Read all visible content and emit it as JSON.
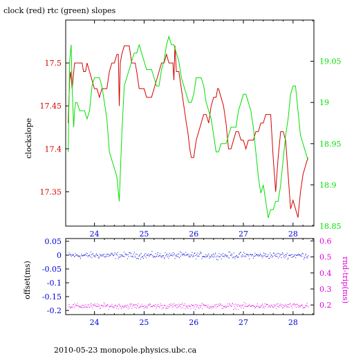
{
  "title": "clock (red) rtc (green) slopes",
  "footer": "2010-05-23  monopole.physics.ubc.ca",
  "colors": {
    "red": "#d40000",
    "green": "#00e000",
    "blue": "#0000d8",
    "magenta": "#e000e0",
    "black": "#000000"
  },
  "chart_data": [
    {
      "type": "line",
      "title": "clock (red) rtc (green) slopes",
      "ylabel": "clockslope",
      "xlim": [
        23.42,
        28.42
      ],
      "x_ticks": [
        "24",
        "25",
        "26",
        "27",
        "28"
      ],
      "ylim_left": [
        17.31,
        17.55
      ],
      "y_ticks_left": [
        "17.5",
        "17.45",
        "17.4",
        "17.35"
      ],
      "ylim_right": [
        18.85,
        19.1
      ],
      "y_ticks_right": [
        "19.05",
        "19",
        "18.95",
        "18.9",
        "18.85"
      ],
      "series": [
        {
          "axis": "left",
          "color": "#d40000",
          "x": [
            23.47,
            23.5,
            23.52,
            23.55,
            23.6,
            23.65,
            23.7,
            23.75,
            23.78,
            23.82,
            23.85,
            23.9,
            23.95,
            24.0,
            24.05,
            24.1,
            24.15,
            24.2,
            24.25,
            24.3,
            24.35,
            24.4,
            24.45,
            24.48,
            24.5,
            24.52,
            24.55,
            24.6,
            24.65,
            24.7,
            24.75,
            24.8,
            24.82,
            24.85,
            24.9,
            24.95,
            25.0,
            25.05,
            25.1,
            25.15,
            25.2,
            25.25,
            25.3,
            25.35,
            25.4,
            25.45,
            25.5,
            25.55,
            25.58,
            25.6,
            25.62,
            25.65,
            25.7,
            25.75,
            25.8,
            25.85,
            25.88,
            25.92,
            25.95,
            26.0,
            26.05,
            26.1,
            26.15,
            26.2,
            26.25,
            26.3,
            26.35,
            26.4,
            26.45,
            26.48,
            26.5,
            26.55,
            26.6,
            26.65,
            26.7,
            26.75,
            26.8,
            26.85,
            26.9,
            26.95,
            27.0,
            27.05,
            27.1,
            27.15,
            27.2,
            27.25,
            27.3,
            27.35,
            27.4,
            27.45,
            27.5,
            27.55,
            27.6,
            27.65,
            27.7,
            27.75,
            27.8,
            27.85,
            27.9,
            27.95,
            28.0,
            28.05,
            28.1,
            28.15,
            28.2,
            28.25,
            28.3
          ],
          "y": [
            17.43,
            17.48,
            17.49,
            17.47,
            17.5,
            17.5,
            17.5,
            17.5,
            17.49,
            17.49,
            17.5,
            17.49,
            17.48,
            17.47,
            17.47,
            17.46,
            17.47,
            17.47,
            17.47,
            17.49,
            17.5,
            17.5,
            17.51,
            17.51,
            17.45,
            17.5,
            17.51,
            17.52,
            17.52,
            17.52,
            17.5,
            17.5,
            17.5,
            17.49,
            17.47,
            17.47,
            17.47,
            17.46,
            17.46,
            17.46,
            17.47,
            17.48,
            17.49,
            17.5,
            17.5,
            17.51,
            17.5,
            17.5,
            17.5,
            17.48,
            17.52,
            17.49,
            17.49,
            17.47,
            17.45,
            17.43,
            17.42,
            17.4,
            17.39,
            17.39,
            17.41,
            17.42,
            17.43,
            17.44,
            17.44,
            17.43,
            17.45,
            17.46,
            17.46,
            17.47,
            17.47,
            17.46,
            17.45,
            17.43,
            17.4,
            17.4,
            17.41,
            17.42,
            17.42,
            17.41,
            17.41,
            17.4,
            17.41,
            17.41,
            17.41,
            17.42,
            17.42,
            17.43,
            17.43,
            17.44,
            17.44,
            17.44,
            17.39,
            17.35,
            17.39,
            17.42,
            17.42,
            17.41,
            17.37,
            17.33,
            17.34,
            17.33,
            17.32,
            17.35,
            17.37,
            17.38,
            17.39
          ]
        },
        {
          "axis": "right",
          "color": "#00e000",
          "x": [
            23.47,
            23.5,
            23.53,
            23.55,
            23.58,
            23.6,
            23.62,
            23.65,
            23.7,
            23.75,
            23.8,
            23.85,
            23.9,
            23.95,
            24.0,
            24.05,
            24.1,
            24.15,
            24.2,
            24.25,
            24.3,
            24.35,
            24.4,
            24.45,
            24.5,
            24.55,
            24.6,
            24.65,
            24.7,
            24.75,
            24.8,
            24.85,
            24.9,
            24.95,
            25.0,
            25.05,
            25.1,
            25.15,
            25.2,
            25.25,
            25.3,
            25.35,
            25.4,
            25.45,
            25.5,
            25.55,
            25.6,
            25.65,
            25.7,
            25.75,
            25.8,
            25.85,
            25.9,
            25.95,
            26.0,
            26.05,
            26.1,
            26.15,
            26.2,
            26.25,
            26.3,
            26.35,
            26.4,
            26.45,
            26.5,
            26.55,
            26.6,
            26.65,
            26.7,
            26.75,
            26.8,
            26.85,
            26.9,
            26.95,
            27.0,
            27.05,
            27.1,
            27.15,
            27.2,
            27.25,
            27.3,
            27.35,
            27.4,
            27.45,
            27.5,
            27.55,
            27.6,
            27.65,
            27.7,
            27.75,
            27.8,
            27.85,
            27.9,
            27.95,
            28.0,
            28.05,
            28.1,
            28.15,
            28.2,
            28.25,
            28.3
          ],
          "y": [
            18.94,
            19.05,
            19.07,
            19.02,
            18.97,
            18.99,
            19.0,
            19.0,
            18.99,
            18.99,
            18.99,
            18.98,
            18.99,
            19.02,
            19.03,
            19.03,
            19.03,
            19.02,
            19.0,
            18.98,
            18.94,
            18.93,
            18.92,
            18.91,
            18.88,
            18.96,
            19.02,
            19.03,
            19.04,
            19.05,
            19.06,
            19.06,
            19.07,
            19.06,
            19.05,
            19.04,
            19.04,
            19.04,
            19.03,
            19.02,
            19.02,
            19.04,
            19.05,
            19.07,
            19.08,
            19.07,
            19.07,
            19.06,
            19.05,
            19.03,
            19.02,
            19.01,
            19.0,
            19.0,
            19.01,
            19.03,
            19.03,
            19.03,
            19.02,
            19.0,
            18.99,
            18.98,
            18.96,
            18.94,
            18.94,
            18.95,
            18.95,
            18.95,
            18.96,
            18.97,
            18.97,
            18.97,
            18.99,
            19.0,
            19.01,
            19.01,
            19.0,
            18.99,
            18.97,
            18.94,
            18.91,
            18.89,
            18.9,
            18.88,
            18.86,
            18.87,
            18.87,
            18.88,
            18.88,
            18.9,
            18.93,
            18.96,
            18.98,
            19.01,
            19.02,
            19.02,
            18.99,
            18.96,
            18.95,
            18.94,
            18.93
          ]
        }
      ]
    },
    {
      "type": "scatter",
      "xlim": [
        23.42,
        28.42
      ],
      "x_ticks": [
        "24",
        "25",
        "26",
        "27",
        "28"
      ],
      "ylabel_left": "offset(ms)",
      "ylim_left": [
        -0.215,
        0.06
      ],
      "y_ticks_left": [
        "0.05",
        "0",
        "-0.05",
        "-0.1",
        "-0.15",
        "-0.2"
      ],
      "ylabel_right": "rnd-trip(ms)",
      "ylim_right": [
        0.14,
        0.615
      ],
      "y_ticks_right": [
        "0.6",
        "0.5",
        "0.4",
        "0.3",
        "0.2"
      ],
      "series": [
        {
          "axis": "left",
          "color": "#0000d8",
          "x_range": [
            23.47,
            28.3
          ],
          "y_mean": 0.0,
          "y_spread": 0.008
        },
        {
          "axis": "right",
          "color": "#e000e0",
          "x_range": [
            23.47,
            28.3
          ],
          "y_mean": 0.195,
          "y_spread": 0.012
        }
      ]
    }
  ]
}
